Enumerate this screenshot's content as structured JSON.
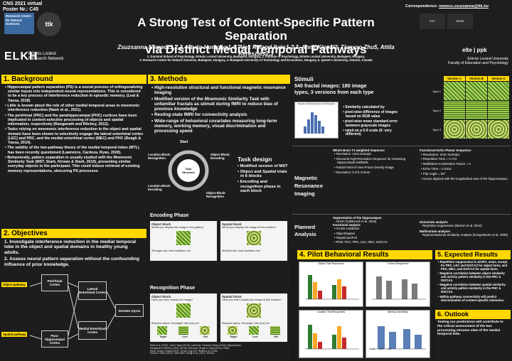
{
  "header": {
    "conference": "CNS 2021 virtual",
    "poster_number": "Poster Nr.: C45",
    "title_line1": "A Strong Test of Content-Specific Pattern Separation",
    "title_line2": "via Distinct Medial Temporal Pathways",
    "authors": "Zsuzsanna Nemecz1,2,3, István Homolya1,4, Alex Roland Ilyés1,2,3, Anna Kispál2, Tianyao Zhu5, Attila Keresztes2,3",
    "affiliation1": "1. Doctoral School of Psychology, Eötvös Loránd University, Budapest, Hungary, 2. Institute of Psychology, Eötvös Loránd University, Budapest, Hungary,",
    "affiliation2": "3. Research Centre for Natural Sciences, Budapest, Hungary, 4. Budapest University of Technology and Economics, Hungary, 5. Queen's University, Ontario, Canada",
    "correspondence_label": "Correspondence:",
    "correspondence_email": "nemecz.zsuzsanna@ttk.hu",
    "logo_rcns": "Research Centre for Natural Sciences",
    "logo_ttk": "ttk",
    "elkh": "ELKH",
    "elkh_sub1": "Eötvös Loránd",
    "elkh_sub2": "Research Network",
    "logo_r1": "PSY",
    "logo_r2": "MDSE",
    "elte": "elte | ppk",
    "elte_sub1": "Eötvös Loránd University",
    "elte_sub2": "Faculty of Education and Psychology"
  },
  "background": {
    "heading": "1. Background",
    "bullets": [
      "Hippocampal pattern separation (PS) is a neural process of orthogonalizing similar inputs into independent neural representations. This is considered to be a key process of interference reduction in episodic memory. (Leal & Yassa, 2018)",
      "Little is known about the role of other medial temporal areas in mnemonic interference reduction (Nash et al., 2021).",
      "The perirhinal (PRC) and the parahippocampal (PHC) cortices have been implicated in content-selective processing of objects and spatial information, respectively (Ranganath and Ritchey, 2012).",
      "Tasks relying on mnemonic interference reduction in the object and spatial domain have been shown to selectively engage the lateral entorhinal cortex (LEC) and PRC, and the medial entorhinal cortex (MEC) and PHC (Reagh & Yassa, 2014).",
      "The validity of the two-pathway theory of the medial temporal lobes (MTL) has been recently questioned (Lawrence, Cardoza, Ryan, 2020).",
      "Behaviorally, pattern separation is usually studied with the Mnemonic Similarity Task (MST, Stark, Kirwan & Stark, 2019), presenting similar everyday objects to the participant. This could induce retrieval of existing memory representations, obscuring PS processes."
    ]
  },
  "objectives": {
    "heading": "2. Objectives",
    "items": [
      "1. Investigate interference reduction in the medial temporal lobe in the object and spatial domains in healthy young adults.",
      "2. Assess neural pattern separation without the confounding influence of prior knowledge."
    ],
    "diagram": {
      "object_pathway": "Object pathway",
      "spatial_pathway": "Spatial pathway",
      "perirhinal": "Perirhinal Cortex",
      "parahippocampal": "Para-hippocampal Cortex",
      "lateral_ec": "Lateral Entorhinal Cortex",
      "medial_ec": "Medial Entorhinal Cortex",
      "dentate": "Dentate Gyrus"
    }
  },
  "methods": {
    "heading": "3. Methods",
    "bullets": [
      "High-resolution structural and functional magnetic resonance imaging",
      "Modified version of the Mnemonic Similarity Task with unfamiliar fractals as stimuli during fMRI to reduce bias of previous knowledge",
      "Resting-state fMRI for connectivity analysis",
      "Wide-range of behavioral covariates measuring long-term memory, working memory, visual discrimination and processing speed"
    ],
    "task_design": {
      "heading": "Task design",
      "start": "Start",
      "center": "Task Structure",
      "loc_rec": "Location Block: Recognition",
      "obj_enc": "Object Block: Encoding",
      "loc_enc": "Location Block: Encoding",
      "obj_rec": "Object Block: Recognition",
      "bullets": [
        "Modified version of MST",
        "Object and Spatial trials in 6 blocks",
        "Encoding and recognition phase in each block"
      ]
    },
    "encoding": {
      "heading": "Encoding Phase",
      "object_title": "Object block",
      "object_q": "Would you display this image in the gallery?",
      "spatial_title": "Spatial block",
      "spatial_q": "Would you display this image at this location?",
      "object_caption": "48 images sets, exact repetitions, lure",
      "spatial_caption": "48 stimuli sets, exact repetitions, lure"
    },
    "recognition": {
      "heading": "Recognition Phase",
      "object_title": "Object block",
      "object_q": "Have you seen exactly this image?",
      "spatial_title": "Spatial block",
      "spatial_q": "Have you seen exactly this image at this location?",
      "object_caption": "Response options: Old (target) / New (lure), foil",
      "spatial_caption": "Response options: Old (target) / New (lure), foil",
      "target": "Target",
      "lure": "Lure",
      "foil": "Foil"
    },
    "references": [
      "Nash et al. (2021), Leal & Yassa (2018), Lawrence, Cardoza & Ryan (2020), Hippocampus.",
      "Ranganath & Ritchey (2012), Nat Rev Neurosci; Reagh & Yassa (2014), PNAS.",
      "Stark, Kirwan & Stark (2019), Trends Cogn Sci; Tsivilis et al. (2008).",
      "Kirwan & Stark (2007), Learn Mem; Reagh et al. (2017), Neuron."
    ]
  },
  "stimuli": {
    "heading": "Stimuli",
    "line1": "540 fractal images: 180 image",
    "line2": "types, 3 versions from each type",
    "chart_title": "Stimulus Similarity Rated by 8 Participants",
    "similarity_notes": [
      "Similarity calculated by",
      "pixel-wise difference of images based on RGB value",
      "pixel-wise mean standard error between grayscale images",
      "rated on a 0-9 scale (0: very different)"
    ],
    "versions": [
      "Version A",
      "Version B",
      "Version C"
    ],
    "types": [
      "Type 1",
      "Type 2",
      "Type 3"
    ]
  },
  "mri": {
    "label1": "Magnetic",
    "label2": "Resonance",
    "label3": "Imaging",
    "t1_heading": "Whole Brain T1-weighted Sequence",
    "t1_items": [
      "Resolution: 1mm isotropic",
      "Structural High-Resolution Sequence for Assessing Hippocampal Subfields",
      "Partial-Field-of-View Proton Density Image",
      "Resolution: 0.4*0.4*2mm"
    ],
    "epi_heading": "Functional Echo Planar Sequence",
    "epi_items": [
      "Resolution: 2mm isotropic",
      "Repetition Time = 0.71s",
      "Multiband Acceleration Factor = 5",
      "Echo Time = 0.031s",
      "Flip Angle = 59°",
      "Scans aligned with the longitudinal axis of the hippocampus."
    ]
  },
  "planned": {
    "label1": "Planned",
    "label2": "Analysis",
    "segmentation": "Segmentation of the hippocampus",
    "seg_tool": "ASHS (Yushkevich et al. 2015)",
    "functional_heading": "Functional analysis",
    "functional_items": [
      "Across conditions",
      "Object/Spatial",
      "Target/Lure/Foil",
      "ROIs: PHC, PRC, LEC, MEC, DG/CA3"
    ],
    "univariate": "Univariate analysis",
    "univariate_item": "Repetition suppression (Barron et al. 2016)",
    "multivariate": "Multivariate analysis",
    "multivariate_item": "Representational Similarity Analysis (Kriegeskorte et al. 2008)"
  },
  "pilot": {
    "heading": "4. Pilot Behavioral Results",
    "charts": [
      "Object Trial Responses",
      "Correct Responses",
      "Location Trial Responses",
      "Memory sensitivity"
    ],
    "legend": [
      "Target",
      "Lure",
      "Foil"
    ]
  },
  "expected": {
    "heading": "5. Expected Results",
    "items": [
      "Repetition suppression in all MTL areas, except for PRC, LEC and DG/CA3 for object lures, and PHC, MEC, and DG/CA3 for spatial lures.",
      "Negative correlation between object similarity and activity pattern similarity in the PRC & DG/CA3.",
      "Negative correlation between spatial similarity and activity pattern similarity in the PHC & DG/CA3.",
      "Within-pathway connectivity will predict discrimination of content-specific memories."
    ]
  },
  "outlook": {
    "heading": "6. Outlook",
    "text": "Testing our predictions will contribute to the critical assessment of the two processing streams view of the medial temporal lobe."
  },
  "colors": {
    "accent": "#ffd800",
    "bg": "#1a1a1a"
  }
}
